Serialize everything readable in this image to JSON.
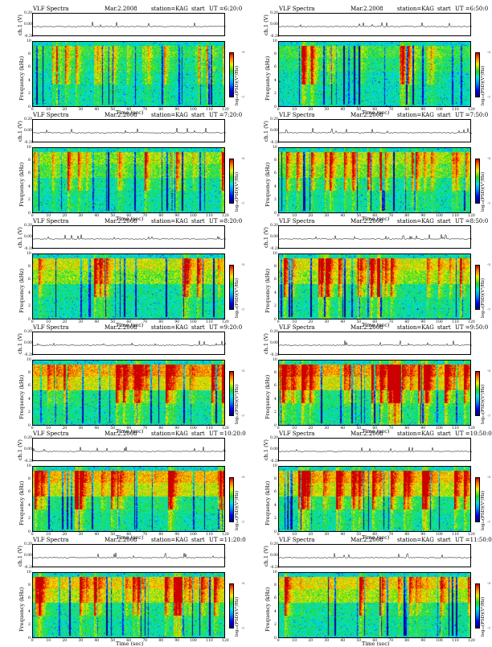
{
  "panel_text": {
    "title": "VLF Spectra",
    "date": "Mar.2.2008",
    "station": "station=KAG",
    "start": "start",
    "ch_label": "ch.1 (V)",
    "freq_label": "Frequency (kHz)",
    "x_label": "Time (sec)",
    "color_label": "log₁₀(PSD)(V²/Hz)"
  },
  "ut_labels": [
    "UT =6:20:0",
    "UT =6:50:0",
    "UT =7:20:0",
    "UT =7:50:0",
    "UT =8:20:0",
    "UT =8:50:0",
    "UT =9:20:0",
    "UT =9:50:0",
    "UT =10:20:0",
    "UT =10:50:0",
    "UT =11:20:0",
    "UT =11:50:0"
  ],
  "colors": {
    "dark_blue": "#00008a",
    "blue": "#0000ff",
    "light_blue": "#0090ff",
    "cyan": "#00e5e5",
    "green": "#22d922",
    "yellow": "#f0f000",
    "orange": "#ff7a00",
    "red": "#cc0000"
  },
  "chart_data": {
    "type": "heatmap",
    "panel_count": 12,
    "layout": "6 rows x 2 columns",
    "x_axis": {
      "label": "Time (sec)",
      "range": [
        0,
        120
      ],
      "ticks": [
        "0",
        "10",
        "20",
        "30",
        "40",
        "50",
        "60",
        "70",
        "80",
        "90",
        "100",
        "110",
        "120"
      ]
    },
    "y_axis": {
      "label": "Frequency (kHz)",
      "range": [
        0,
        10
      ],
      "ticks": [
        "0",
        "2",
        "4",
        "6",
        "8",
        "10"
      ]
    },
    "timeseries_axis": {
      "label": "ch.1 (V)",
      "ticks": [
        "0.20",
        "0.00",
        "-0.20"
      ],
      "range": [
        -0.2,
        0.2
      ]
    },
    "colorbar": {
      "label": "log₁₀(PSD)(V²/Hz)",
      "ticks": [
        "-3",
        "-7"
      ]
    },
    "panels": [
      {
        "ut": "6:20:0",
        "intensity": 0.25
      },
      {
        "ut": "6:50:0",
        "intensity": 0.3
      },
      {
        "ut": "7:20:0",
        "intensity": 0.4
      },
      {
        "ut": "7:50:0",
        "intensity": 0.45
      },
      {
        "ut": "8:20:0",
        "intensity": 0.55
      },
      {
        "ut": "8:50:0",
        "intensity": 0.55
      },
      {
        "ut": "9:20:0",
        "intensity": 0.75
      },
      {
        "ut": "9:50:0",
        "intensity": 0.75
      },
      {
        "ut": "10:20:0",
        "intensity": 0.7
      },
      {
        "ut": "10:50:0",
        "intensity": 0.65
      },
      {
        "ut": "11:20:0",
        "intensity": 0.65
      },
      {
        "ut": "11:50:0",
        "intensity": 0.6
      }
    ]
  }
}
